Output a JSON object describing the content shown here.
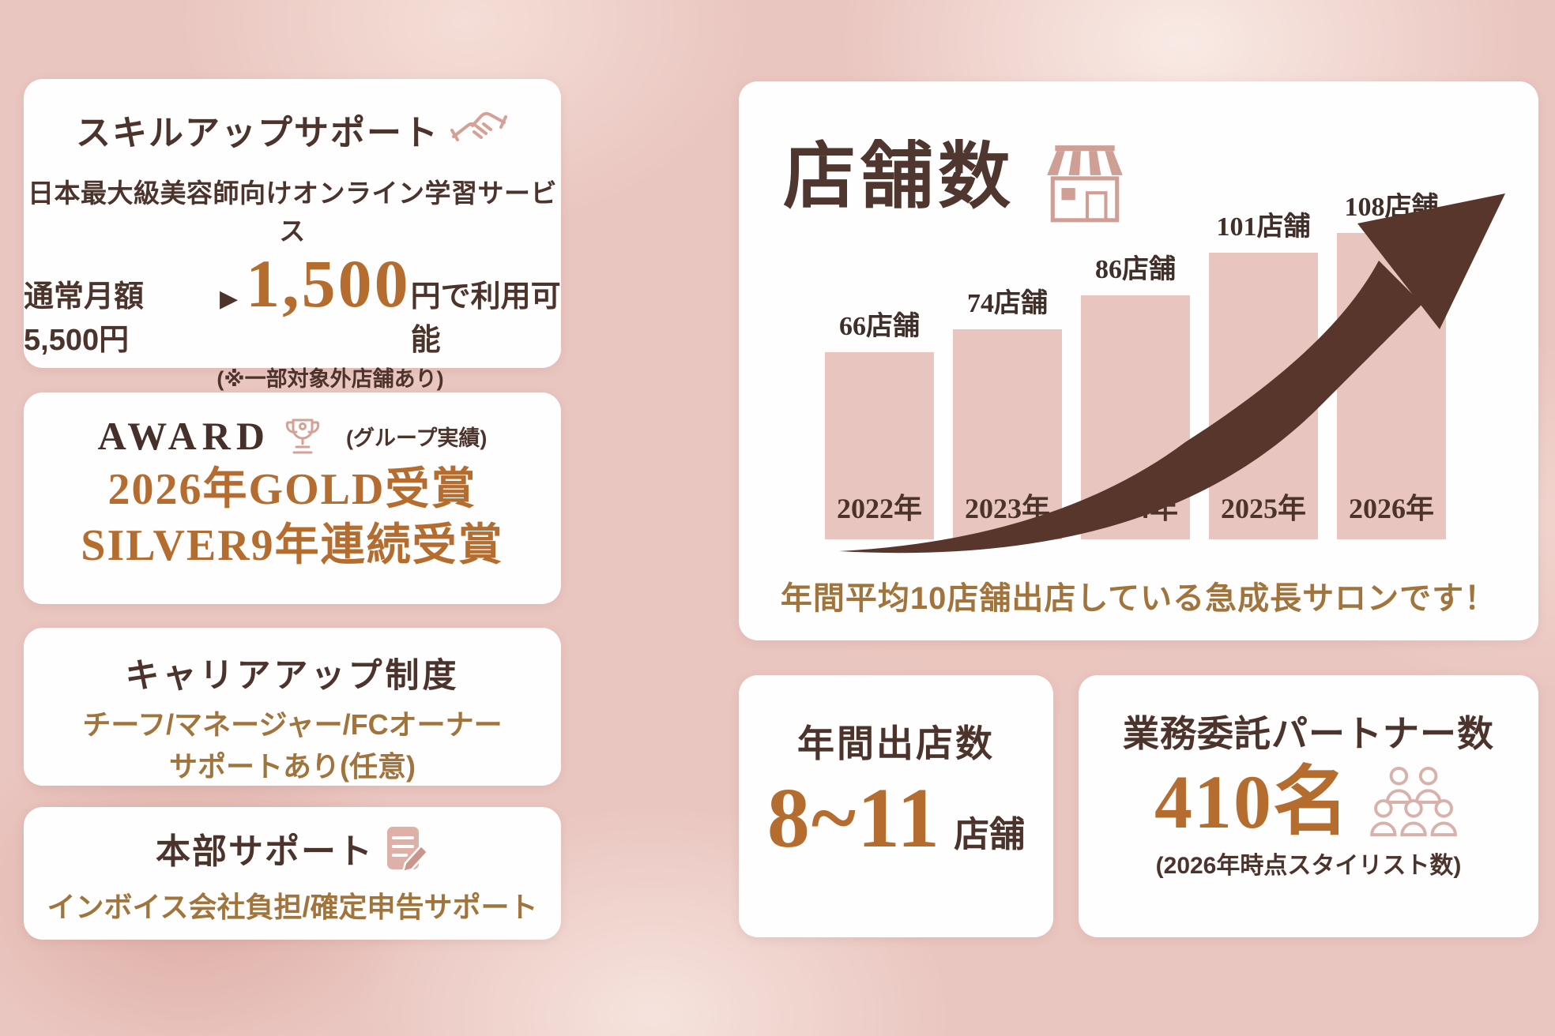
{
  "colors": {
    "background": "#eac6c0",
    "card": "#fffefe",
    "dark_brown": "#4c342c",
    "golden_brown": "#a1743c",
    "accent_orange": "#b56d2f",
    "bar_pink": "#e9c5bf",
    "icon_pink": "#cf9f96",
    "arrow_brown": "#59362c"
  },
  "icons": {
    "skill": "handshake-icon",
    "award": "trophy-icon",
    "hq": "clipboard-pencil-icon",
    "stores": "storefront-icon",
    "partners": "people-group-icon",
    "chart_annotation": "growth-arrow"
  },
  "cards": {
    "skill": {
      "title": "スキルアップサポート",
      "line1": "日本最大級美容師向けオンライン学習サービス",
      "price_prefix": "通常月額5,500円",
      "price_arrow": "▶",
      "price_value": "1,500",
      "price_suffix": "円で利用可能",
      "note": "(※一部対象外店舗あり)"
    },
    "award": {
      "title": "AWARD",
      "subtitle": "(グループ実績)",
      "line1": "2026年GOLD受賞",
      "line2": "SILVER9年連続受賞"
    },
    "career": {
      "title": "キャリアアップ制度",
      "line1": "チーフ/マネージャー/FCオーナー",
      "line2": "サポートあり(任意)"
    },
    "hq": {
      "title": "本部サポート",
      "line1": "インボイス会社負担/確定申告サポート"
    },
    "stores": {
      "title": "店舗数",
      "caption": "年間平均10店舗出店している急成長サロンです！"
    },
    "annual": {
      "title": "年間出店数",
      "value": "8~11",
      "unit": "店舗"
    },
    "partners": {
      "title": "業務委託パートナー数",
      "value": "410名",
      "note": "(2026年時点スタイリスト数)"
    }
  },
  "chart_data": {
    "type": "bar",
    "title": "店舗数",
    "categories": [
      "2022年",
      "2023年",
      "2024年",
      "2025年",
      "2026年"
    ],
    "values": [
      66,
      74,
      86,
      101,
      108
    ],
    "bar_labels": [
      "66店舗",
      "74店舗",
      "86店舗",
      "101店舗",
      "108店舗"
    ],
    "ylabel": "店舗数",
    "ylim": [
      0,
      115
    ],
    "grid": false,
    "legend": false,
    "bar_color": "#e9c5bf",
    "annotation": "upward growth arrow",
    "caption": "年間平均10店舗出店している急成長サロンです！"
  }
}
